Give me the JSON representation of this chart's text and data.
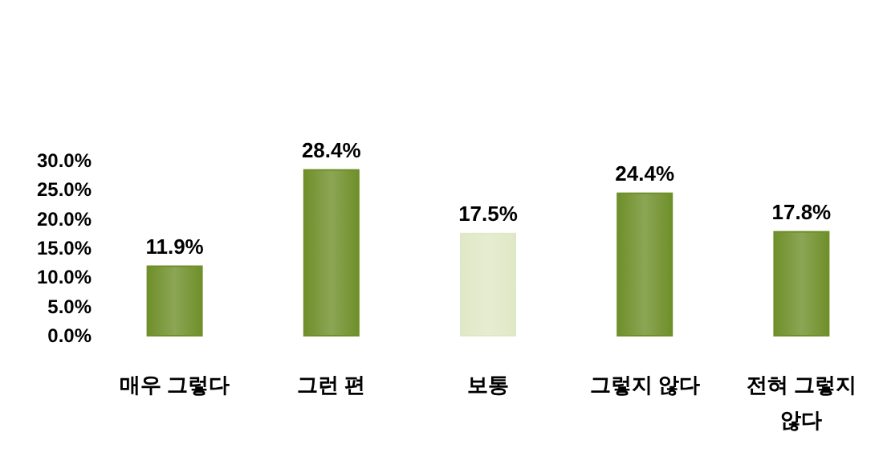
{
  "chart_data": {
    "type": "bar",
    "categories": [
      "매우 그렇다",
      "그런 편",
      "보통",
      "그렇지 않다",
      "전혀 그렇지 않다"
    ],
    "values": [
      11.9,
      28.4,
      17.5,
      24.4,
      17.8
    ],
    "value_labels": [
      "11.9%",
      "28.4%",
      "17.5%",
      "24.4%",
      "17.8%"
    ],
    "colors": [
      "#6f8f2a",
      "#6f8f2a",
      "#dfe8c6",
      "#6f8f2a",
      "#6f8f2a"
    ],
    "ylim": [
      0,
      30
    ],
    "yticks": [
      {
        "value": 0,
        "label": "0.0%"
      },
      {
        "value": 5,
        "label": "5.0%"
      },
      {
        "value": 10,
        "label": "10.0%"
      },
      {
        "value": 15,
        "label": "15.0%"
      },
      {
        "value": 20,
        "label": "20.0%"
      },
      {
        "value": 25,
        "label": "25.0%"
      },
      {
        "value": 30,
        "label": "30.0%"
      }
    ],
    "data_labels": false
  }
}
